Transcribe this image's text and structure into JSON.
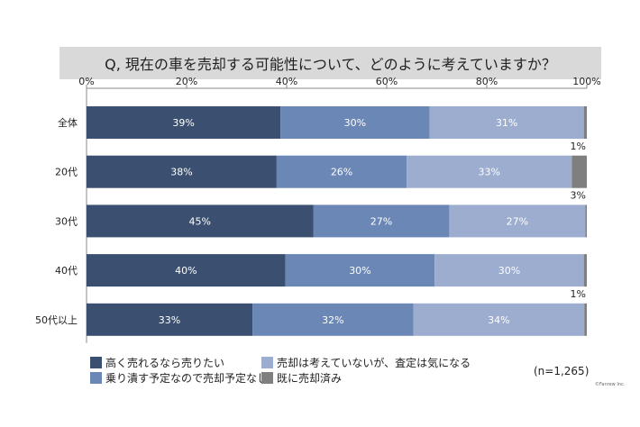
{
  "chart_data": {
    "type": "bar",
    "orientation": "horizontal-stacked-100",
    "title": "Q, 現在の車を売却する可能性について、どのように考えていますか？",
    "categories": [
      "全体",
      "20代",
      "30代",
      "40代",
      "50代以上"
    ],
    "x_ticks": [
      "0%",
      "20%",
      "40%",
      "60%",
      "80%",
      "100%"
    ],
    "xlim": [
      0,
      100
    ],
    "series": [
      {
        "name": "高く売れるなら売りたい",
        "color": "#3b5070",
        "values": [
          39,
          38,
          45,
          40,
          33
        ],
        "labels": [
          "39%",
          "38%",
          "45%",
          "40%",
          "33%"
        ]
      },
      {
        "name": "乗り潰す予定なので売却予定なし",
        "color": "#6a87b6",
        "values": [
          30,
          26,
          27,
          30,
          32
        ],
        "labels": [
          "30%",
          "26%",
          "27%",
          "30%",
          "32%"
        ]
      },
      {
        "name": "売却は考えていないが、査定は気になる",
        "color": "#9cadd0",
        "values": [
          31,
          33,
          27,
          30,
          34
        ],
        "labels": [
          "31%",
          "33%",
          "27%",
          "30%",
          "34%"
        ]
      },
      {
        "name": "既に売却済み",
        "color": "#7f7f80",
        "values": [
          0.6,
          3,
          0.3,
          0.6,
          0.5
        ],
        "labels": [
          "1%",
          "3%",
          null,
          "1%",
          null
        ]
      }
    ],
    "note": "(n=1,265)",
    "credit": "©Fanrew Inc."
  }
}
